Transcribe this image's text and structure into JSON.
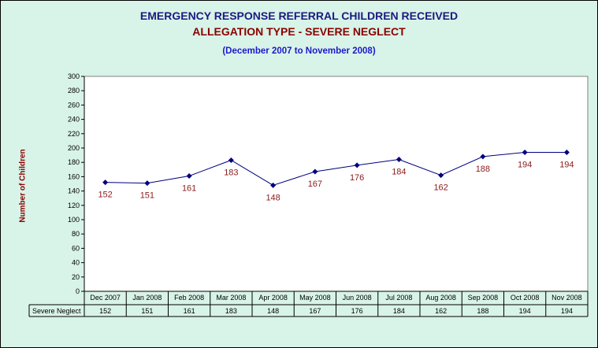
{
  "chart_data": {
    "type": "line",
    "title": "EMERGENCY RESPONSE REFERRAL CHILDREN RECEIVED",
    "subtitle": "ALLEGATION TYPE - SEVERE NEGLECT",
    "period": "(December 2007 to November 2008)",
    "ylabel": "Number of Children",
    "xlabel": "",
    "ylim": [
      0,
      300
    ],
    "yticks": [
      "0",
      "20",
      "40",
      "60",
      "80",
      "100",
      "120",
      "140",
      "160",
      "180",
      "200",
      "220",
      "240",
      "260",
      "280",
      "300"
    ],
    "categories": [
      "Dec 2007",
      "Jan 2008",
      "Feb 2008",
      "Mar 2008",
      "Apr 2008",
      "May 2008",
      "Jun 2008",
      "Jul 2008",
      "Aug 2008",
      "Sep 2008",
      "Oct 2008",
      "Nov 2008"
    ],
    "series": [
      {
        "name": "Severe Neglect",
        "values": [
          152,
          151,
          161,
          183,
          148,
          167,
          176,
          184,
          162,
          188,
          194,
          194
        ],
        "color": "#00007f"
      }
    ],
    "grid": false,
    "legend": "none",
    "data_table": true
  },
  "colors": {
    "background": "#d8f3e8",
    "plot_area": "#ffffff",
    "title_color": "#1a1a80",
    "subtitle_color": "#8b0000",
    "period_color": "#1a1acc",
    "data_label_color": "#8b1a1a"
  }
}
